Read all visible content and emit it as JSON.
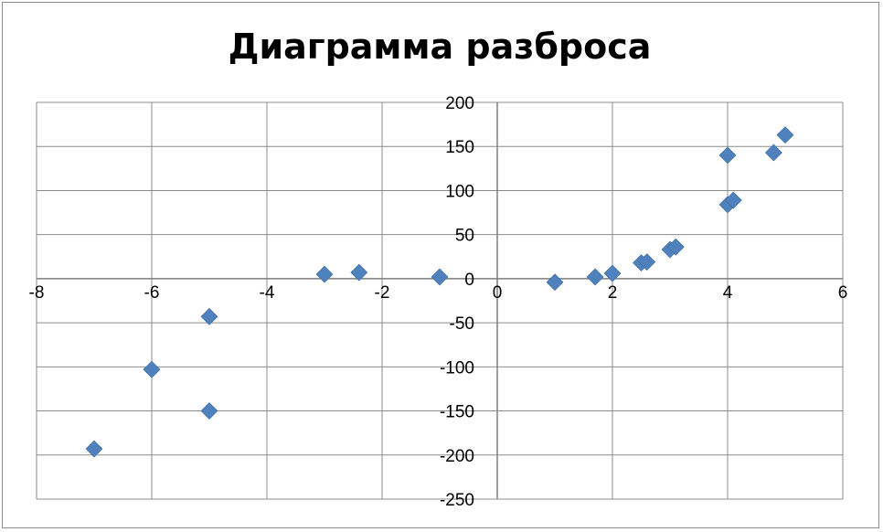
{
  "chart_data": {
    "type": "scatter",
    "title": "Диаграмма разброса",
    "xlabel": "",
    "ylabel": "",
    "xlim": [
      -8,
      6
    ],
    "ylim": [
      -250,
      200
    ],
    "x_ticks": [
      "-8",
      "-6",
      "-4",
      "-2",
      "0",
      "2",
      "4",
      "6"
    ],
    "y_ticks": [
      "200",
      "150",
      "100",
      "50",
      "0",
      "-50",
      "-100",
      "-150",
      "-200",
      "-250"
    ],
    "grid": true,
    "marker": "diamond",
    "color": "#4f81bd",
    "series": [
      {
        "points": [
          [
            -7,
            -193
          ],
          [
            -6,
            -103
          ],
          [
            -5,
            -43
          ],
          [
            -5,
            -150
          ],
          [
            -3,
            5
          ],
          [
            -2.4,
            7
          ],
          [
            -1,
            2
          ],
          [
            1,
            -4
          ],
          [
            1.7,
            2
          ],
          [
            2,
            6
          ],
          [
            2.5,
            18
          ],
          [
            2.6,
            19
          ],
          [
            3,
            33
          ],
          [
            3.1,
            36
          ],
          [
            4,
            140
          ],
          [
            4,
            84
          ],
          [
            4.1,
            89
          ],
          [
            4.8,
            143
          ],
          [
            5,
            163
          ]
        ]
      }
    ]
  }
}
